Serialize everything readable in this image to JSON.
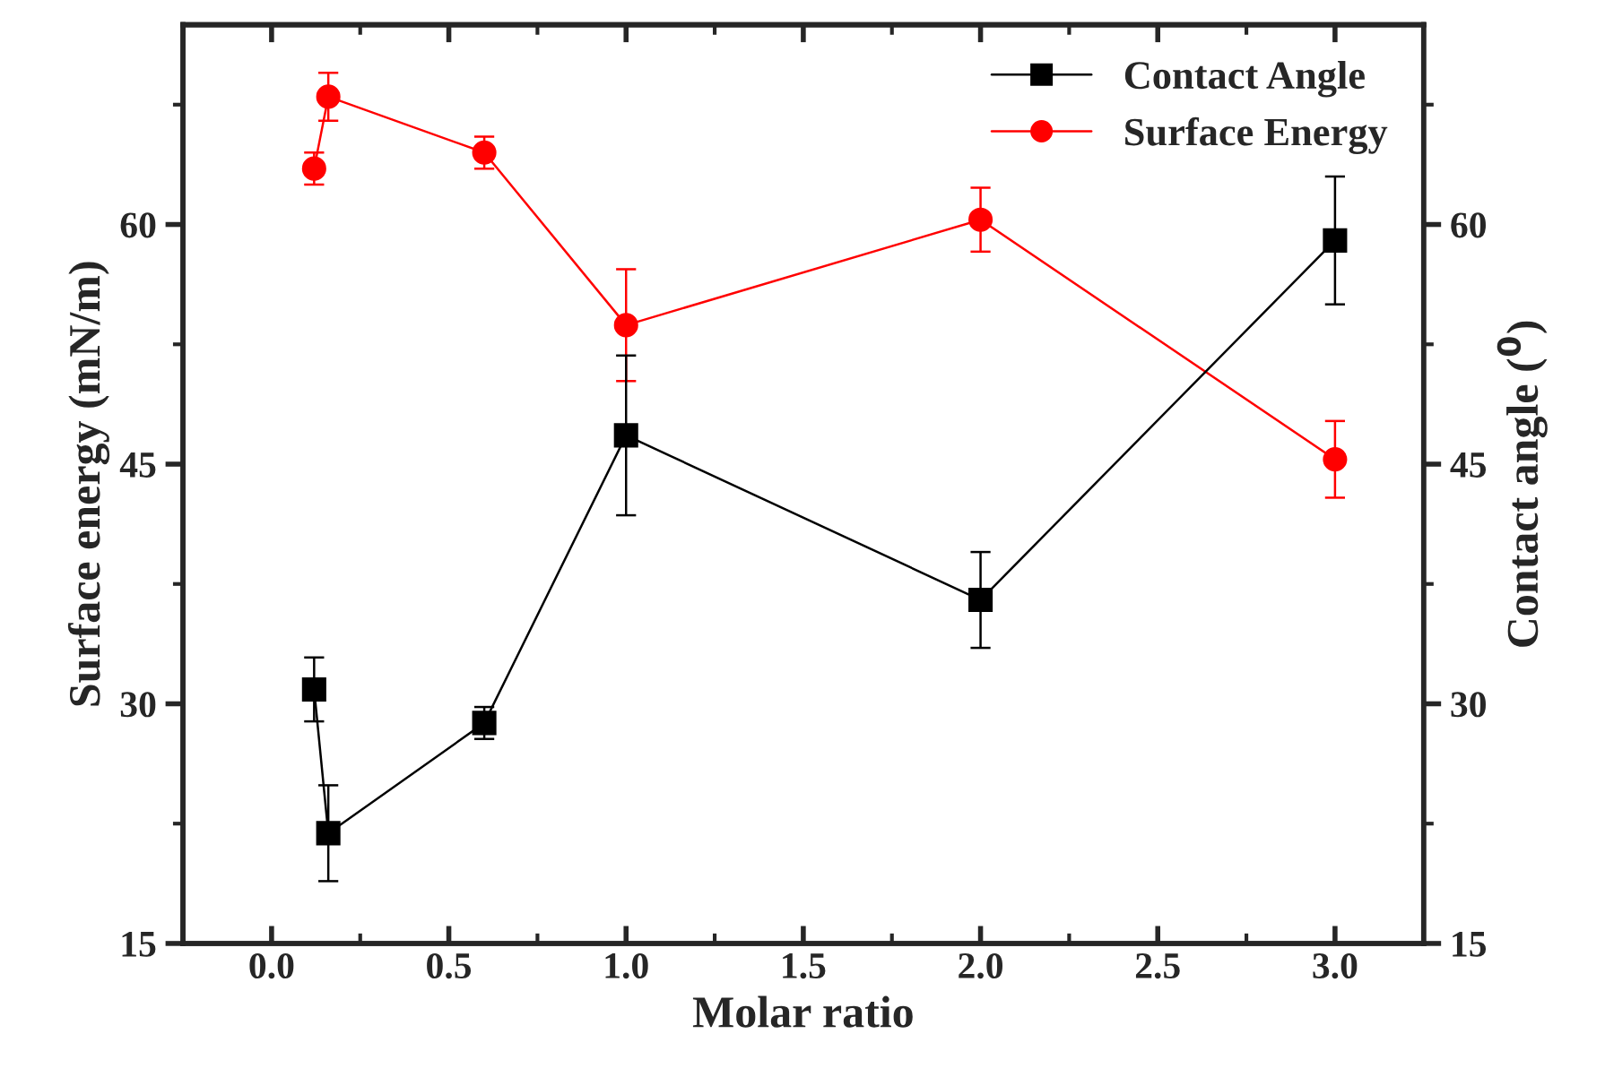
{
  "chart_data": {
    "type": "line",
    "xlabel": "Molar ratio",
    "ylabel": "Surface energy (mN/m)",
    "y2label": "Contact angle ($^{0}$)",
    "xlim": [
      -0.25,
      3.25
    ],
    "xticks": [
      {
        "value": 0,
        "label": "0.0"
      },
      {
        "value": 0.5,
        "label": "0.5"
      },
      {
        "value": 1,
        "label": "1.0"
      },
      {
        "value": 1.5,
        "label": "1.5"
      },
      {
        "value": 2,
        "label": "2.0"
      },
      {
        "value": 2.5,
        "label": "2.5"
      },
      {
        "value": 3,
        "label": "3.0"
      }
    ],
    "ylim": [
      15,
      72.5
    ],
    "yticks": [
      15,
      30,
      45,
      60
    ],
    "y2lim": [
      15,
      72.5
    ],
    "y2ticks": [
      15,
      30,
      45,
      60
    ],
    "legend": "top right",
    "grid": false,
    "series": [
      {
        "name": "Contact Angle",
        "color": "#000000",
        "axis": "y2",
        "marker": "square",
        "x": [
          0.12,
          0.16,
          0.6,
          1.0,
          2.0,
          3.0
        ],
        "values": [
          30.9,
          21.9,
          28.8,
          46.8,
          36.5,
          59.0
        ],
        "errors": [
          2.0,
          3.0,
          1.0,
          5.0,
          3.0,
          4.0
        ]
      },
      {
        "name": "Surface Energy",
        "color": "#ff0000",
        "axis": "y",
        "marker": "circle",
        "x": [
          0.12,
          0.16,
          0.6,
          1.0,
          2.0,
          3.0
        ],
        "values": [
          63.5,
          68.0,
          64.5,
          53.7,
          60.3,
          45.3
        ],
        "errors": [
          1.0,
          1.5,
          1.0,
          3.5,
          2.0,
          2.4
        ]
      }
    ]
  }
}
